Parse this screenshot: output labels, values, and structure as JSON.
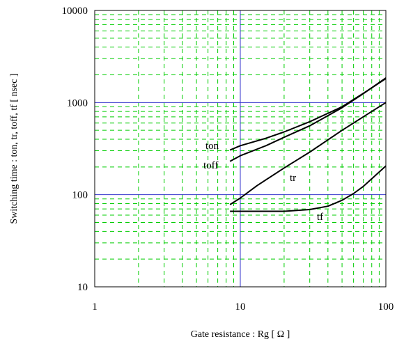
{
  "chart_data": {
    "type": "line",
    "title": "",
    "xlabel": "Gate resistance  :  Rg  [ Ω ]",
    "ylabel": "Switching time  :  ton, tr, toff, tf  [ nsec ]",
    "x_scale": "log",
    "y_scale": "log",
    "xlim": [
      1,
      100
    ],
    "ylim": [
      10,
      10000
    ],
    "x_ticks": [
      "1",
      "10",
      "100"
    ],
    "y_ticks": [
      "10",
      "100",
      "1000",
      "10000"
    ],
    "grid": true,
    "colors": {
      "major_grid": "#3333cc",
      "minor_grid": "#00cc00",
      "series": "#000000"
    },
    "series": [
      {
        "name": "ton",
        "x": [
          8.5,
          10,
          15,
          20,
          30,
          50,
          70,
          100
        ],
        "y": [
          305,
          340,
          410,
          480,
          620,
          900,
          1260,
          1820
        ]
      },
      {
        "name": "toff",
        "x": [
          8.5,
          10,
          15,
          20,
          30,
          50,
          70,
          100
        ],
        "y": [
          230,
          265,
          340,
          420,
          560,
          880,
          1250,
          1850
        ]
      },
      {
        "name": "tr",
        "x": [
          8.5,
          10,
          13,
          20,
          30,
          50,
          70,
          100
        ],
        "y": [
          78,
          92,
          125,
          195,
          290,
          500,
          700,
          1000
        ]
      },
      {
        "name": "tf",
        "x": [
          8.5,
          10,
          20,
          30,
          40,
          50,
          60,
          70,
          100
        ],
        "y": [
          66,
          66,
          66,
          69,
          75,
          87,
          103,
          123,
          205
        ]
      }
    ]
  }
}
